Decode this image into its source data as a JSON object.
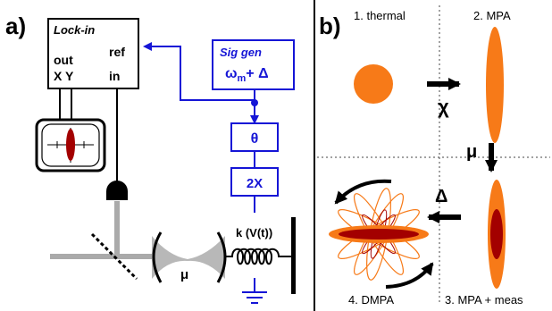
{
  "panel_a": {
    "label": "a)",
    "lockin": {
      "title": "Lock-in",
      "out": "out",
      "xy": "X Y",
      "ref": "ref",
      "in": "in"
    },
    "siggen": {
      "title": "Sig gen",
      "freq": "ω",
      "freq_sub": "m",
      "freq_tail": "+ Δ"
    },
    "theta_box": "θ",
    "twox_box": "2X",
    "spring_label": "k (V(t))",
    "cavity_label": "μ"
  },
  "panel_b": {
    "label": "b)",
    "q1": "1. thermal",
    "q2": "2. MPA",
    "q3": "3. MPA + meas",
    "q4": "4. DMPA",
    "arrow_chi": "χ",
    "arrow_mu": "μ",
    "arrow_delta": "Δ"
  },
  "colors": {
    "blue": "#1515d6",
    "orange": "#f77a18",
    "darkred": "#a30000",
    "gray": "#aaaaaa"
  }
}
